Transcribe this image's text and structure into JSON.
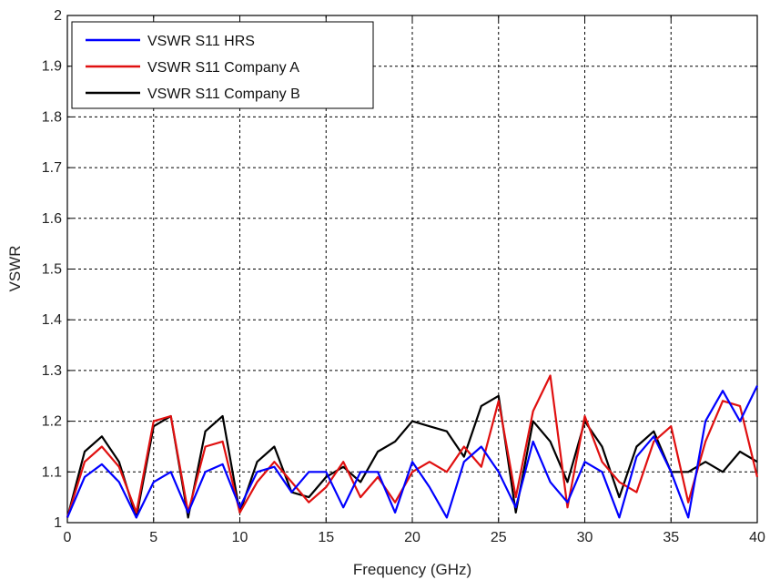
{
  "chart_data": {
    "type": "line",
    "title": "",
    "xlabel": "Frequency (GHz)",
    "ylabel": "VSWR",
    "xlim": [
      0,
      40
    ],
    "ylim": [
      1,
      2
    ],
    "x_ticks": [
      0,
      5,
      10,
      15,
      20,
      25,
      30,
      35,
      40
    ],
    "y_ticks": [
      1,
      1.1,
      1.2,
      1.3,
      1.4,
      1.5,
      1.6,
      1.7,
      1.8,
      1.9,
      2
    ],
    "x_tick_labels": [
      "0",
      "5",
      "10",
      "15",
      "20",
      "25",
      "30",
      "35",
      "40"
    ],
    "y_tick_labels": [
      "1",
      "1.1",
      "1.2",
      "1.3",
      "1.4",
      "1.5",
      "1.6",
      "1.7",
      "1.8",
      "1.9",
      "2"
    ],
    "grid": true,
    "legend_position": "top-left",
    "series": [
      {
        "name": "VSWR S11 HRS",
        "color": "#0000ff",
        "x": [
          0,
          1,
          2,
          3,
          4,
          5,
          6,
          7,
          8,
          9,
          10,
          11,
          12,
          13,
          14,
          15,
          16,
          17,
          18,
          19,
          20,
          21,
          22,
          23,
          24,
          25,
          26,
          27,
          28,
          29,
          30,
          31,
          32,
          33,
          34,
          35,
          36,
          37,
          38,
          39,
          40
        ],
        "y": [
          1.01,
          1.09,
          1.115,
          1.08,
          1.01,
          1.08,
          1.1,
          1.02,
          1.1,
          1.115,
          1.03,
          1.1,
          1.11,
          1.06,
          1.1,
          1.1,
          1.03,
          1.1,
          1.1,
          1.02,
          1.12,
          1.07,
          1.01,
          1.12,
          1.15,
          1.1,
          1.03,
          1.16,
          1.08,
          1.04,
          1.12,
          1.1,
          1.01,
          1.13,
          1.17,
          1.1,
          1.01,
          1.2,
          1.26,
          1.2,
          1.27
        ]
      },
      {
        "name": "VSWR S11 Company A",
        "color": "#e01010",
        "x": [
          0,
          1,
          2,
          3,
          4,
          5,
          6,
          7,
          8,
          9,
          10,
          11,
          12,
          13,
          14,
          15,
          16,
          17,
          18,
          19,
          20,
          21,
          22,
          23,
          24,
          25,
          26,
          27,
          28,
          29,
          30,
          31,
          32,
          33,
          34,
          35,
          36,
          37,
          38,
          39,
          40
        ],
        "y": [
          1.01,
          1.12,
          1.15,
          1.11,
          1.02,
          1.2,
          1.21,
          1.02,
          1.15,
          1.16,
          1.02,
          1.08,
          1.12,
          1.08,
          1.04,
          1.07,
          1.12,
          1.05,
          1.09,
          1.04,
          1.1,
          1.12,
          1.1,
          1.15,
          1.11,
          1.24,
          1.05,
          1.22,
          1.29,
          1.03,
          1.21,
          1.12,
          1.08,
          1.06,
          1.16,
          1.19,
          1.04,
          1.16,
          1.24,
          1.23,
          1.09
        ]
      },
      {
        "name": "VSWR S11 Company B",
        "color": "#000000",
        "x": [
          0,
          1,
          2,
          3,
          4,
          5,
          6,
          7,
          8,
          9,
          10,
          11,
          12,
          13,
          14,
          15,
          16,
          17,
          18,
          19,
          20,
          21,
          22,
          23,
          24,
          25,
          26,
          27,
          28,
          29,
          30,
          31,
          32,
          33,
          34,
          35,
          36,
          37,
          38,
          39,
          40
        ],
        "y": [
          1.01,
          1.14,
          1.17,
          1.12,
          1.01,
          1.19,
          1.21,
          1.01,
          1.18,
          1.21,
          1.02,
          1.12,
          1.15,
          1.06,
          1.05,
          1.09,
          1.11,
          1.08,
          1.14,
          1.16,
          1.2,
          1.19,
          1.18,
          1.13,
          1.23,
          1.25,
          1.02,
          1.2,
          1.16,
          1.08,
          1.2,
          1.15,
          1.05,
          1.15,
          1.18,
          1.1,
          1.1,
          1.12,
          1.1,
          1.14,
          1.12
        ]
      }
    ]
  }
}
